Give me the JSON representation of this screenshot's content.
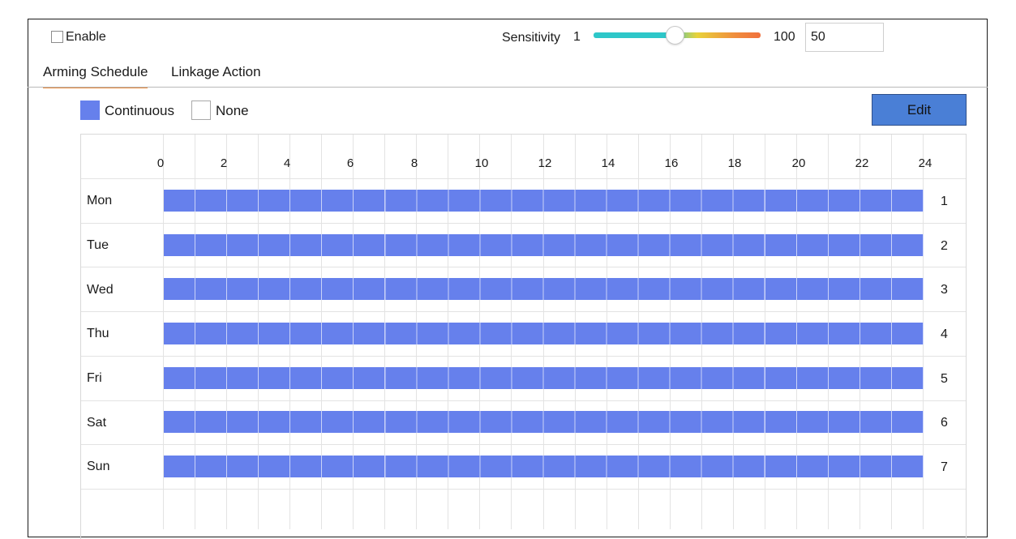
{
  "enable": {
    "label": "Enable",
    "checked": false
  },
  "sensitivity": {
    "label": "Sensitivity",
    "min_label": "1",
    "max_label": "100",
    "value": "50",
    "min": 1,
    "max": 100
  },
  "tabs": [
    {
      "label": "Arming Schedule",
      "active": true
    },
    {
      "label": "Linkage Action",
      "active": false
    }
  ],
  "legend": {
    "continuous_label": "Continuous",
    "none_label": "None",
    "continuous_color": "#6680ec"
  },
  "edit_button": {
    "label": "Edit",
    "color": "#4a7fd6"
  },
  "schedule": {
    "hour_labels": [
      "0",
      "2",
      "4",
      "6",
      "8",
      "10",
      "12",
      "14",
      "16",
      "18",
      "20",
      "22",
      "24"
    ],
    "days": [
      {
        "name": "Mon",
        "index": "1",
        "start_hour": 0,
        "end_hour": 24,
        "mode": "Continuous"
      },
      {
        "name": "Tue",
        "index": "2",
        "start_hour": 0,
        "end_hour": 24,
        "mode": "Continuous"
      },
      {
        "name": "Wed",
        "index": "3",
        "start_hour": 0,
        "end_hour": 24,
        "mode": "Continuous"
      },
      {
        "name": "Thu",
        "index": "4",
        "start_hour": 0,
        "end_hour": 24,
        "mode": "Continuous"
      },
      {
        "name": "Fri",
        "index": "5",
        "start_hour": 0,
        "end_hour": 24,
        "mode": "Continuous"
      },
      {
        "name": "Sat",
        "index": "6",
        "start_hour": 0,
        "end_hour": 24,
        "mode": "Continuous"
      },
      {
        "name": "Sun",
        "index": "7",
        "start_hour": 0,
        "end_hour": 24,
        "mode": "Continuous"
      }
    ]
  }
}
